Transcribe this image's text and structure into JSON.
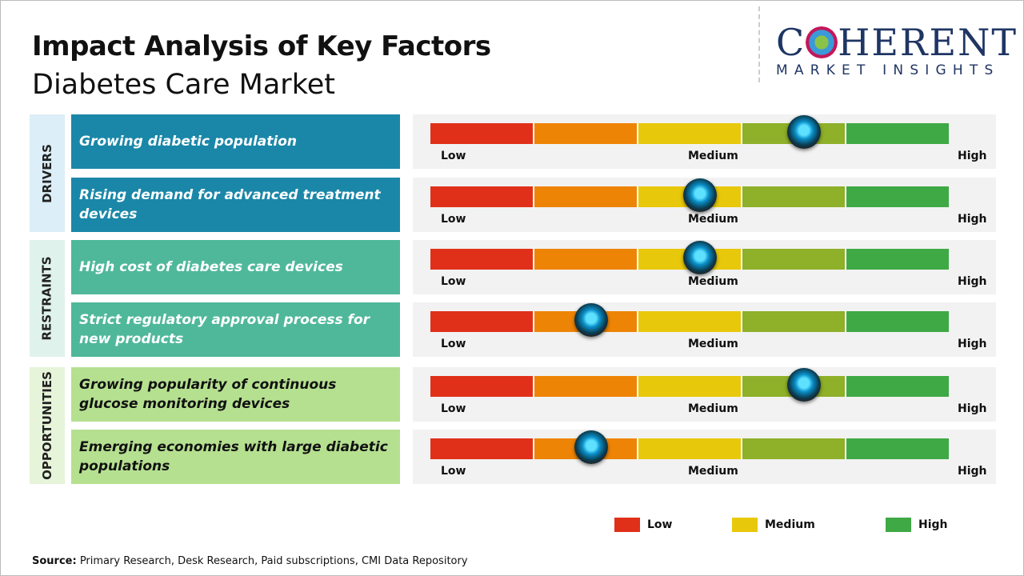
{
  "title": "Impact Analysis of Key Factors",
  "subtitle": "Diabetes Care Market",
  "logo": {
    "line1": "COHERENT",
    "line2": "MARKET INSIGHTS"
  },
  "scale_labels": {
    "low": "Low",
    "medium": "Medium",
    "high": "High"
  },
  "scale_colors": [
    "#e03019",
    "#ee8405",
    "#e8c80a",
    "#8fb029",
    "#3fa945"
  ],
  "chart_data": {
    "type": "gauge",
    "scale": [
      "Low",
      "Medium",
      "High"
    ],
    "categories": [
      {
        "name": "DRIVERS",
        "color": "#1a87a8",
        "bg": "#dceef7",
        "factors": [
          {
            "label": "Growing diabetic population",
            "level": 0.72
          },
          {
            "label": "Rising demand for advanced treatment devices",
            "level": 0.52
          }
        ]
      },
      {
        "name": "RESTRAINTS",
        "color": "#4fb89a",
        "bg": "#e0f2ec",
        "factors": [
          {
            "label": "High cost of diabetes care devices",
            "level": 0.52
          },
          {
            "label": "Strict regulatory approval process for new products",
            "level": 0.31
          }
        ]
      },
      {
        "name": "OPPORTUNITIES",
        "color": "#b5e090",
        "bg": "#e6f4da",
        "factors": [
          {
            "label": "Growing popularity of continuous glucose monitoring devices",
            "level": 0.72
          },
          {
            "label": "Emerging economies with large diabetic populations",
            "level": 0.31
          }
        ]
      }
    ],
    "legend": [
      {
        "label": "Low",
        "color": "#e03019"
      },
      {
        "label": "Medium",
        "color": "#e8c80a"
      },
      {
        "label": "High",
        "color": "#3fa945"
      }
    ]
  },
  "source": {
    "label": "Source:",
    "text": " Primary Research, Desk Research, Paid subscriptions, CMI Data Repository"
  }
}
